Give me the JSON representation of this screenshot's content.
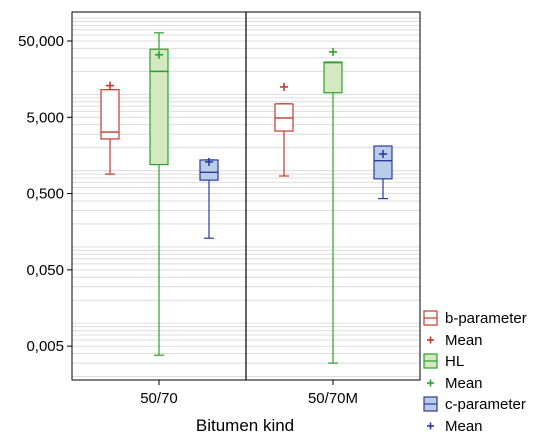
{
  "chart_data": {
    "type": "boxplot",
    "xlabel": "Bitumen kind",
    "ylabel": "",
    "yscale": "log",
    "ylim": [
      0.0018,
      120
    ],
    "y_ticks": [
      {
        "value": 0.005,
        "label": "0,005"
      },
      {
        "value": 0.05,
        "label": "0,050"
      },
      {
        "value": 0.5,
        "label": "0,500"
      },
      {
        "value": 5,
        "label": "5,000"
      },
      {
        "value": 50,
        "label": "50,000"
      }
    ],
    "grid": true,
    "legend_position": "right",
    "categories": [
      "50/70",
      "50/70M"
    ],
    "series": [
      {
        "name": "b-parameter",
        "color": "#c0392b",
        "fill": "#ffffff",
        "mean_label": "Mean",
        "boxes": [
          {
            "category": "50/70",
            "min": 0.9,
            "q1": 2.6,
            "median": 3.2,
            "q3": 11.5,
            "max": 11.5,
            "mean": 13.0
          },
          {
            "category": "50/70M",
            "min": 0.85,
            "q1": 3.3,
            "median": 4.9,
            "q3": 7.5,
            "max": 7.5,
            "mean": 12.5
          }
        ]
      },
      {
        "name": "HL",
        "color": "#2ca02c",
        "fill": "#d5e8c0",
        "mean_label": "Mean",
        "boxes": [
          {
            "category": "50/70",
            "min": 0.0038,
            "q1": 1.2,
            "median": 20.0,
            "q3": 39.0,
            "max": 64.0,
            "mean": 33.0
          },
          {
            "category": "50/70M",
            "min": 0.003,
            "q1": 10.5,
            "median": 26.0,
            "q3": 26.5,
            "max": 26.5,
            "mean": 36.0
          }
        ]
      },
      {
        "name": "c-parameter",
        "color": "#2e3aa0",
        "fill": "#b7cde8",
        "mean_label": "Mean",
        "boxes": [
          {
            "category": "50/70",
            "min": 0.13,
            "q1": 0.75,
            "median": 0.95,
            "q3": 1.38,
            "max": 1.38,
            "mean": 1.3
          },
          {
            "category": "50/70M",
            "min": 0.43,
            "q1": 0.78,
            "median": 1.35,
            "q3": 2.1,
            "max": 2.1,
            "mean": 1.65
          }
        ]
      }
    ]
  }
}
